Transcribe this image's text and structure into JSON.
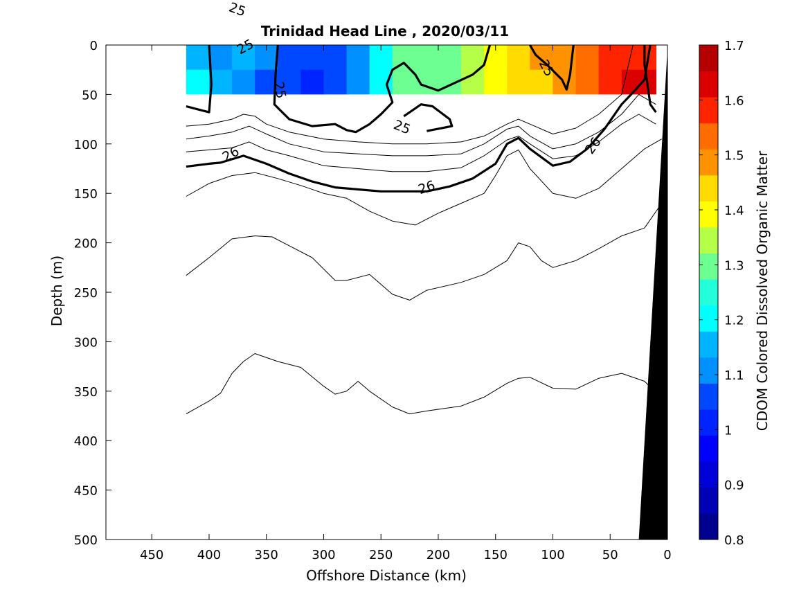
{
  "chart_data": {
    "type": "heatmap",
    "title": "Trinidad Head Line , 2020/03/11",
    "xlabel": "Offshore Distance (km)",
    "ylabel": "Depth (m)",
    "xlim": [
      490,
      0
    ],
    "ylim": [
      500,
      0
    ],
    "x_reversed": true,
    "y_reversed": true,
    "x_ticks": [
      "450",
      "400",
      "350",
      "300",
      "250",
      "200",
      "150",
      "100",
      "50",
      "0"
    ],
    "x_tick_values": [
      450,
      400,
      350,
      300,
      250,
      200,
      150,
      100,
      50,
      0
    ],
    "y_ticks": [
      "0",
      "50",
      "100",
      "150",
      "200",
      "250",
      "300",
      "350",
      "400",
      "450",
      "500"
    ],
    "y_tick_values": [
      0,
      50,
      100,
      150,
      200,
      250,
      300,
      350,
      400,
      450,
      500
    ],
    "grid": false,
    "colorbar": {
      "label": "CDOM Colored Dissolved Organic Matter",
      "range": [
        0.8,
        1.7
      ],
      "tick_labels": [
        "1.7",
        "1.6",
        "1.5",
        "1.4",
        "1.3",
        "1.2",
        "1.1",
        "1",
        "0.9",
        "0.8"
      ],
      "tick_values": [
        1.7,
        1.6,
        1.5,
        1.4,
        1.3,
        1.2,
        1.1,
        1.0,
        0.9,
        0.8
      ],
      "levels": 18,
      "colors": [
        "#00008f",
        "#0000b4",
        "#0000d9",
        "#0000ff",
        "#0024ff",
        "#0048ff",
        "#0090ff",
        "#00b4ff",
        "#00ffff",
        "#24ffdb",
        "#6dff92",
        "#b6ff49",
        "#ffff00",
        "#ffdb00",
        "#ff9200",
        "#ff6d00",
        "#ff2400",
        "#db0000",
        "#b40000"
      ]
    },
    "cdom_field": {
      "depth_range": [
        0,
        50
      ],
      "x": [
        420,
        400,
        380,
        360,
        340,
        320,
        300,
        280,
        260,
        240,
        220,
        200,
        180,
        160,
        140,
        120,
        100,
        80,
        60,
        40,
        20,
        10
      ],
      "surface_values": [
        1.16,
        1.12,
        1.15,
        1.1,
        1.06,
        1.04,
        1.08,
        1.12,
        1.22,
        1.32,
        1.32,
        1.3,
        1.34,
        1.38,
        1.45,
        1.47,
        1.5,
        1.55,
        1.56,
        1.58,
        1.6,
        1.6
      ],
      "deep_values": [
        1.18,
        1.14,
        1.12,
        1.07,
        1.04,
        1.02,
        1.07,
        1.12,
        1.2,
        1.3,
        1.32,
        1.32,
        1.33,
        1.38,
        1.42,
        1.46,
        1.48,
        1.52,
        1.57,
        1.61,
        1.62,
        1.62
      ]
    },
    "contour_labels": [
      "25",
      "25",
      "25",
      "25",
      "25",
      "26",
      "26",
      "26"
    ],
    "contour_label_values": [
      25,
      25,
      25,
      25,
      25,
      26,
      26,
      26
    ],
    "contour_lines": [
      {
        "level": 25,
        "bold": true,
        "points": [
          [
            420,
            62
          ],
          [
            410,
            65
          ],
          [
            400,
            68
          ],
          [
            398,
            40
          ],
          [
            400,
            0
          ]
        ]
      },
      {
        "level": 25,
        "bold": true,
        "points": [
          [
            340,
            0
          ],
          [
            342,
            30
          ],
          [
            343,
            60
          ],
          [
            330,
            75
          ],
          [
            310,
            82
          ],
          [
            290,
            80
          ],
          [
            280,
            86
          ],
          [
            272,
            88
          ],
          [
            260,
            80
          ],
          [
            250,
            70
          ],
          [
            240,
            58
          ],
          [
            245,
            40
          ],
          [
            240,
            25
          ],
          [
            230,
            18
          ],
          [
            220,
            30
          ],
          [
            215,
            40
          ],
          [
            200,
            46
          ],
          [
            170,
            30
          ],
          [
            160,
            20
          ],
          [
            155,
            0
          ]
        ]
      },
      {
        "level": 25,
        "bold": true,
        "points": [
          [
            230,
            72
          ],
          [
            215,
            60
          ],
          [
            205,
            62
          ],
          [
            190,
            75
          ],
          [
            188,
            82
          ],
          [
            210,
            87
          ]
        ]
      },
      {
        "level": 25,
        "bold": true,
        "points": [
          [
            120,
            0
          ],
          [
            115,
            10
          ],
          [
            105,
            20
          ],
          [
            92,
            35
          ],
          [
            88,
            45
          ],
          [
            85,
            30
          ],
          [
            82,
            0
          ]
        ]
      },
      {
        "level": 25,
        "bold": true,
        "points": [
          [
            20,
            0
          ],
          [
            20,
            20
          ],
          [
            18,
            35
          ],
          [
            15,
            60
          ],
          [
            10,
            68
          ]
        ]
      },
      {
        "level": 26,
        "bold": true,
        "points": [
          [
            420,
            123
          ],
          [
            400,
            120
          ],
          [
            390,
            119
          ],
          [
            370,
            112
          ],
          [
            350,
            120
          ],
          [
            330,
            130
          ],
          [
            310,
            138
          ],
          [
            290,
            144
          ],
          [
            270,
            146
          ],
          [
            250,
            148
          ],
          [
            230,
            148
          ],
          [
            210,
            148
          ],
          [
            190,
            143
          ],
          [
            170,
            135
          ],
          [
            150,
            120
          ],
          [
            140,
            100
          ],
          [
            130,
            94
          ],
          [
            120,
            105
          ],
          [
            100,
            122
          ],
          [
            85,
            118
          ],
          [
            70,
            105
          ],
          [
            55,
            85
          ],
          [
            40,
            60
          ],
          [
            30,
            48
          ],
          [
            20,
            35
          ],
          [
            15,
            0
          ]
        ]
      },
      {
        "level": 25.2,
        "bold": false,
        "points": [
          [
            420,
            82
          ],
          [
            400,
            80
          ],
          [
            380,
            75
          ],
          [
            370,
            70
          ],
          [
            360,
            72
          ],
          [
            350,
            80
          ],
          [
            330,
            88
          ],
          [
            300,
            95
          ],
          [
            270,
            98
          ],
          [
            240,
            100
          ],
          [
            210,
            100
          ],
          [
            180,
            98
          ],
          [
            160,
            92
          ],
          [
            140,
            80
          ],
          [
            130,
            75
          ],
          [
            120,
            80
          ],
          [
            100,
            90
          ],
          [
            80,
            84
          ],
          [
            60,
            70
          ],
          [
            40,
            50
          ],
          [
            30,
            0
          ]
        ]
      },
      {
        "level": 25.4,
        "bold": false,
        "points": [
          [
            420,
            95
          ],
          [
            400,
            92
          ],
          [
            380,
            88
          ],
          [
            365,
            82
          ],
          [
            350,
            90
          ],
          [
            330,
            100
          ],
          [
            300,
            108
          ],
          [
            270,
            110
          ],
          [
            240,
            112
          ],
          [
            210,
            112
          ],
          [
            180,
            110
          ],
          [
            160,
            100
          ],
          [
            140,
            85
          ],
          [
            130,
            82
          ],
          [
            120,
            92
          ],
          [
            100,
            105
          ],
          [
            80,
            100
          ],
          [
            60,
            88
          ],
          [
            40,
            70
          ],
          [
            25,
            50
          ],
          [
            10,
            60
          ]
        ]
      },
      {
        "level": 25.7,
        "bold": false,
        "points": [
          [
            420,
            108
          ],
          [
            400,
            106
          ],
          [
            380,
            104
          ],
          [
            365,
            98
          ],
          [
            350,
            106
          ],
          [
            330,
            112
          ],
          [
            300,
            122
          ],
          [
            270,
            125
          ],
          [
            240,
            128
          ],
          [
            210,
            128
          ],
          [
            180,
            124
          ],
          [
            160,
            112
          ],
          [
            140,
            96
          ],
          [
            130,
            92
          ],
          [
            120,
            100
          ],
          [
            100,
            115
          ],
          [
            80,
            112
          ],
          [
            60,
            98
          ],
          [
            40,
            80
          ],
          [
            25,
            70
          ],
          [
            10,
            80
          ]
        ]
      },
      {
        "level": 26.3,
        "bold": false,
        "points": [
          [
            420,
            153
          ],
          [
            400,
            140
          ],
          [
            380,
            132
          ],
          [
            360,
            129
          ],
          [
            340,
            135
          ],
          [
            320,
            142
          ],
          [
            300,
            150
          ],
          [
            280,
            155
          ],
          [
            260,
            168
          ],
          [
            240,
            178
          ],
          [
            220,
            182
          ],
          [
            200,
            170
          ],
          [
            180,
            160
          ],
          [
            160,
            150
          ],
          [
            150,
            132
          ],
          [
            140,
            112
          ],
          [
            130,
            106
          ],
          [
            120,
            125
          ],
          [
            100,
            150
          ],
          [
            80,
            155
          ],
          [
            60,
            145
          ],
          [
            40,
            125
          ],
          [
            20,
            105
          ],
          [
            5,
            95
          ]
        ]
      },
      {
        "level": 26.6,
        "bold": false,
        "points": [
          [
            420,
            233
          ],
          [
            400,
            215
          ],
          [
            380,
            196
          ],
          [
            360,
            193
          ],
          [
            345,
            194
          ],
          [
            335,
            200
          ],
          [
            310,
            215
          ],
          [
            290,
            238
          ],
          [
            280,
            238
          ],
          [
            260,
            232
          ],
          [
            240,
            252
          ],
          [
            225,
            258
          ],
          [
            210,
            248
          ],
          [
            180,
            240
          ],
          [
            160,
            232
          ],
          [
            140,
            218
          ],
          [
            130,
            200
          ],
          [
            120,
            204
          ],
          [
            110,
            218
          ],
          [
            100,
            225
          ],
          [
            80,
            218
          ],
          [
            60,
            206
          ],
          [
            40,
            193
          ],
          [
            20,
            185
          ],
          [
            5,
            160
          ]
        ]
      },
      {
        "level": 26.9,
        "bold": false,
        "points": [
          [
            420,
            373
          ],
          [
            400,
            360
          ],
          [
            390,
            352
          ],
          [
            380,
            332
          ],
          [
            370,
            320
          ],
          [
            360,
            312
          ],
          [
            340,
            320
          ],
          [
            320,
            326
          ],
          [
            300,
            345
          ],
          [
            290,
            353
          ],
          [
            280,
            350
          ],
          [
            270,
            340
          ],
          [
            260,
            350
          ],
          [
            240,
            366
          ],
          [
            225,
            373
          ],
          [
            210,
            370
          ],
          [
            180,
            365
          ],
          [
            160,
            356
          ],
          [
            140,
            342
          ],
          [
            130,
            337
          ],
          [
            120,
            336
          ],
          [
            100,
            347
          ],
          [
            80,
            348
          ],
          [
            60,
            337
          ],
          [
            40,
            332
          ],
          [
            20,
            340
          ],
          [
            5,
            358
          ]
        ]
      }
    ],
    "bathymetry": {
      "seafloor_x": [
        0,
        25
      ],
      "seafloor_y": [
        5,
        500
      ]
    }
  }
}
